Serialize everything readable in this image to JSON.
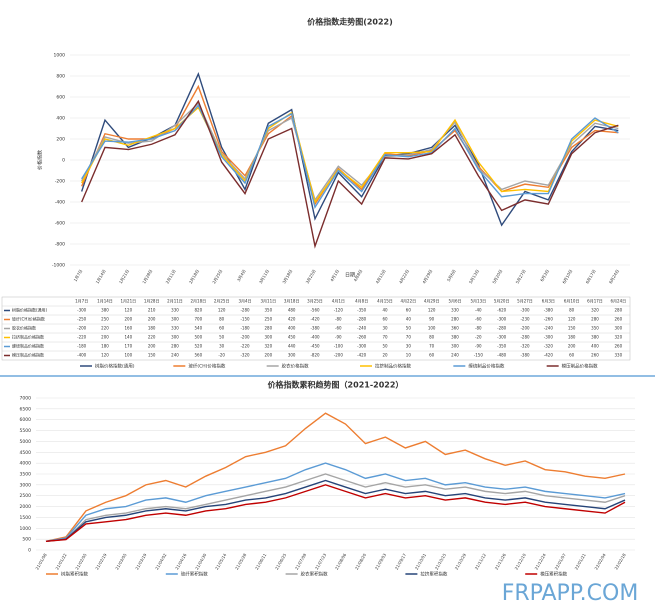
{
  "chart_data": [
    {
      "type": "line",
      "title": "价格指数走势图(2022)",
      "y_label": "价格指数",
      "x_label": "日期",
      "categories": [
        "1月7日",
        "1月14日",
        "1月21日",
        "1月28日",
        "2月11日",
        "2月18日",
        "2月25日",
        "3月4日",
        "3月11日",
        "3月18日",
        "3月25日",
        "4月1日",
        "4月8日",
        "4月15日",
        "4月22日",
        "4月29日",
        "5月6日",
        "5月13日",
        "5月20日",
        "5月27日",
        "6月3日",
        "6月10日",
        "6月17日",
        "6月24日"
      ],
      "series": [
        {
          "name": "树脂价格指数(通用)",
          "color": "#2f4b7c",
          "values": [
            -300,
            380,
            120,
            210,
            330,
            820,
            120,
            -280,
            350,
            480,
            -560,
            -120,
            -350,
            40,
            60,
            120,
            330,
            -40,
            -620,
            -300,
            -380,
            80,
            320,
            280
          ]
        },
        {
          "name": "玻纤(CH)价格指数",
          "color": "#ed7d31",
          "values": [
            -250,
            250,
            200,
            200,
            300,
            700,
            80,
            -150,
            250,
            420,
            -420,
            -80,
            -280,
            60,
            40,
            90,
            280,
            -60,
            -300,
            -230,
            -260,
            120,
            280,
            260
          ]
        },
        {
          "name": "胶衣价格指数",
          "color": "#a5a5a5",
          "values": [
            -200,
            220,
            160,
            180,
            330,
            540,
            60,
            -180,
            280,
            400,
            -380,
            -60,
            -240,
            30,
            50,
            100,
            360,
            -80,
            -280,
            -200,
            -240,
            150,
            350,
            300
          ]
        },
        {
          "name": "拉挤制品价格指数",
          "color": "#ffc000",
          "values": [
            -220,
            200,
            140,
            220,
            300,
            500,
            50,
            -200,
            300,
            450,
            -400,
            -90,
            -260,
            70,
            70,
            80,
            380,
            -20,
            -300,
            -280,
            -300,
            180,
            380,
            320
          ]
        },
        {
          "name": "缠绕制品价格指数",
          "color": "#5b9bd5",
          "values": [
            -180,
            180,
            170,
            200,
            280,
            520,
            30,
            -220,
            320,
            440,
            -450,
            -100,
            -300,
            50,
            30,
            70,
            300,
            -90,
            -350,
            -320,
            -320,
            200,
            400,
            260
          ]
        },
        {
          "name": "模压制品价格指数",
          "color": "#7b2d2d",
          "values": [
            -400,
            120,
            100,
            150,
            240,
            560,
            -20,
            -320,
            200,
            300,
            -820,
            -200,
            -420,
            20,
            10,
            60,
            240,
            -150,
            -480,
            -380,
            -420,
            60,
            260,
            330
          ]
        }
      ],
      "ylim": [
        -1000,
        1000
      ],
      "yticks": [
        -1000,
        -800,
        -600,
        -400,
        -200,
        0,
        200,
        400,
        600,
        800,
        1000
      ],
      "grid": true,
      "data_table": true,
      "legend": "bottom"
    },
    {
      "type": "line",
      "title": "价格指数累积趋势图（2021-2022）",
      "categories": [
        "21/01/08",
        "21/01/22",
        "21/02/05",
        "21/02/19",
        "21/03/05",
        "21/03/19",
        "21/04/02",
        "21/04/16",
        "21/04/30",
        "21/05/14",
        "21/05/28",
        "21/06/11",
        "21/06/25",
        "21/07/09",
        "21/07/23",
        "21/08/06",
        "21/08/20",
        "21/09/03",
        "21/09/17",
        "21/10/01",
        "21/10/15",
        "21/10/29",
        "21/11/12",
        "21/11/26",
        "21/12/10",
        "21/12/24",
        "22/01/07",
        "22/01/21",
        "22/02/04",
        "22/02/18"
      ],
      "series": [
        {
          "name": "树脂累积指数",
          "color": "#ed7d31",
          "values": [
            400,
            600,
            1800,
            2200,
            2500,
            3000,
            3200,
            2900,
            3400,
            3800,
            4300,
            4500,
            4800,
            5600,
            6300,
            5800,
            4900,
            5200,
            4700,
            5000,
            4400,
            4600,
            4200,
            3900,
            4100,
            3700,
            3600,
            3400,
            3300,
            3500
          ]
        },
        {
          "name": "玻纤累积指数",
          "color": "#5b9bd5",
          "values": [
            400,
            550,
            1600,
            1900,
            2000,
            2300,
            2400,
            2200,
            2500,
            2700,
            2900,
            3100,
            3300,
            3700,
            4000,
            3700,
            3300,
            3500,
            3200,
            3300,
            3000,
            3100,
            2900,
            2800,
            2900,
            2700,
            2600,
            2500,
            2400,
            2600
          ]
        },
        {
          "name": "胶衣累积指数",
          "color": "#a5a5a5",
          "values": [
            400,
            500,
            1400,
            1600,
            1700,
            1900,
            2000,
            1900,
            2100,
            2300,
            2500,
            2700,
            2900,
            3200,
            3500,
            3200,
            2900,
            3100,
            2900,
            3000,
            2800,
            2900,
            2700,
            2600,
            2700,
            2500,
            2400,
            2300,
            2200,
            2500
          ]
        },
        {
          "name": "拉挤累积指数",
          "color": "#264478",
          "values": [
            400,
            500,
            1300,
            1500,
            1600,
            1800,
            1900,
            1800,
            2000,
            2100,
            2300,
            2400,
            2600,
            2900,
            3200,
            2900,
            2600,
            2800,
            2600,
            2700,
            2500,
            2600,
            2400,
            2300,
            2400,
            2200,
            2100,
            2000,
            1900,
            2300
          ]
        },
        {
          "name": "模压累积指数",
          "color": "#c00000",
          "values": [
            400,
            480,
            1200,
            1300,
            1400,
            1600,
            1700,
            1600,
            1800,
            1900,
            2100,
            2200,
            2400,
            2700,
            3000,
            2700,
            2400,
            2600,
            2400,
            2500,
            2300,
            2400,
            2200,
            2100,
            2200,
            2000,
            1900,
            1800,
            1700,
            2200
          ]
        }
      ],
      "ylim": [
        0,
        7000
      ],
      "yticks": [
        0,
        500,
        1000,
        1500,
        2000,
        2500,
        3000,
        3500,
        4000,
        4500,
        5000,
        5500,
        6000,
        6500,
        7000
      ],
      "grid": true,
      "data_table": false,
      "legend": "bottom"
    }
  ],
  "watermark": "FRPAPP.COM"
}
